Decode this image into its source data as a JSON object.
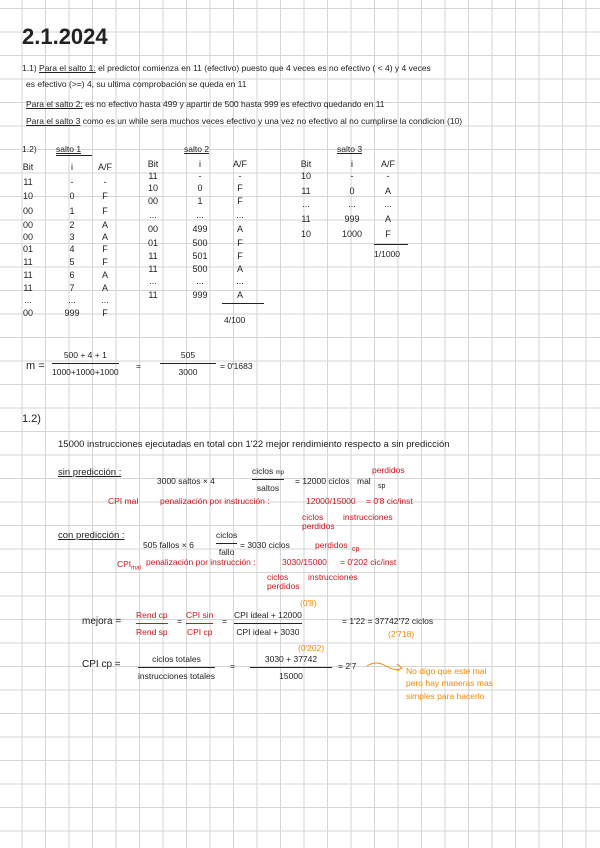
{
  "date": "2.1.2024",
  "section_1_1": {
    "label": "1.1)",
    "salto1_heading": "Para el salto 1:",
    "salto1_text": "el predictor comienza en 11 (efectivo) puesto que 4 veces es no efectivo ( < 4) y 4 veces",
    "salto1_text2": "es efectivo (>=) 4, su ultima comprobación se queda en 11",
    "salto2_heading": "Para el salto 2:",
    "salto2_text": "es no efectivo hasta 499 y apartir de 500 hasta 999 es efectivo quedando en 11",
    "salto3_heading": "Para el salto 3",
    "salto3_text": "como es un while sera muchos veces efectivo y una vez no efectivo al no cumplirse la condicion (10)"
  },
  "section_1_2a": {
    "label": "1.2)",
    "tables": [
      {
        "title": "salto 1",
        "headers": [
          "Bit",
          "i",
          "A/F"
        ],
        "rows": [
          [
            "11",
            "-",
            "-"
          ],
          [
            "10",
            "0",
            "F"
          ],
          [
            "00",
            "1",
            "F"
          ],
          [
            "00",
            "2",
            "A"
          ],
          [
            "00",
            "3",
            "A"
          ],
          [
            "01",
            "4",
            "F"
          ],
          [
            "11",
            "5",
            "F"
          ],
          [
            "11",
            "6",
            "A"
          ],
          [
            "11",
            "7",
            "A"
          ],
          [
            "...",
            "...",
            "..."
          ],
          [
            "00",
            "999",
            "F"
          ]
        ],
        "total": ""
      },
      {
        "title": "salto 2",
        "headers": [
          "Bit",
          "i",
          "A/F"
        ],
        "rows": [
          [
            "11",
            "-",
            "-"
          ],
          [
            "10",
            "0",
            "F"
          ],
          [
            "00",
            "1",
            "F"
          ],
          [
            "...",
            "...",
            "..."
          ],
          [
            "00",
            "499",
            "A"
          ],
          [
            "01",
            "500",
            "F"
          ],
          [
            "11",
            "501",
            "F"
          ],
          [
            "11",
            "500",
            "A"
          ],
          [
            "...",
            "...",
            "..."
          ],
          [
            "11",
            "999",
            "A"
          ]
        ],
        "total": "4/100"
      },
      {
        "title": "salto 3",
        "headers": [
          "Bit",
          "i",
          "A/F"
        ],
        "rows": [
          [
            "10",
            "-",
            "-"
          ],
          [
            "11",
            "0",
            "A"
          ],
          [
            "...",
            "...",
            "..."
          ],
          [
            "11",
            "999",
            "A"
          ],
          [
            "10",
            "1000",
            "F"
          ]
        ],
        "total": "1/1000"
      }
    ],
    "m_label": "m =",
    "m_num": "500 + 4 + 1",
    "m_den": "1000+1000+1000",
    "m_eq": "=",
    "m_num2": "505",
    "m_den2": "3000",
    "m_result": "= 0'1683"
  },
  "section_1_2b": {
    "label": "1.2)",
    "intro": "15000 instrucciones ejecutadas en total con 1'22 mejor rendimiento respecto a sin predicción",
    "sin": {
      "heading": "sin predicción :",
      "calc_left": "3000 saltos × 4",
      "frac_num": "ciclos",
      "frac_sup": "mp",
      "frac_den": "saltos",
      "calc_right": "= 12000 ciclos",
      "mal": "mal",
      "perdidos": "perdidos",
      "sp": "sp",
      "cpi_label": "CPI mal",
      "penal": "penalización por instrucción :",
      "penal_calc": "12000/15000",
      "penal_result": "= 0'8 cic/inst",
      "ann1": "ciclos perdidos",
      "ann2": "instrucciones"
    },
    "con": {
      "heading": "con predicción :",
      "calc_left": "505 fallos × 6",
      "frac_num": "ciclos",
      "frac_den": "fallo",
      "calc_right": "= 3030 ciclos",
      "perdidos": "perdidos",
      "cp": "cp",
      "cpi_label": "CPI",
      "cpi_sub": "mal",
      "penal": "penalización por instrucción :",
      "penal_calc": "3030/15000",
      "penal_result": "= 0'202 cic/inst",
      "ann1": "ciclos perdidos",
      "ann2": "instrucciones"
    },
    "mejora": {
      "label": "mejora =",
      "f1_num": "Rend cp",
      "f1_den": "Rend sp",
      "eq1": "=",
      "f2_num": "CPI sin",
      "f2_den": "CPI cp",
      "eq2": "=",
      "f3_num": "CPI ideal + 12000",
      "f3_den": "CPI ideal + 3030",
      "note_top": "(0'8)",
      "note_bottom": "(0'202)",
      "result": "= 1'22 = 37742'72 ciclos",
      "result_note": "(2'718)"
    },
    "cpi_cp": {
      "label": "CPI cp =",
      "num": "ciclos totales",
      "den": "instrucciones totales",
      "eq": "=",
      "num2": "3030 + 37742",
      "den2": "15000",
      "result": "= 2'7",
      "comment": [
        "No digo que este mal",
        "pero hay maneras mas",
        "simples para hacerlo"
      ]
    }
  },
  "colors": {
    "red": "#d0141e",
    "orange": "#f08c00",
    "grid": "#d6d6d6"
  }
}
